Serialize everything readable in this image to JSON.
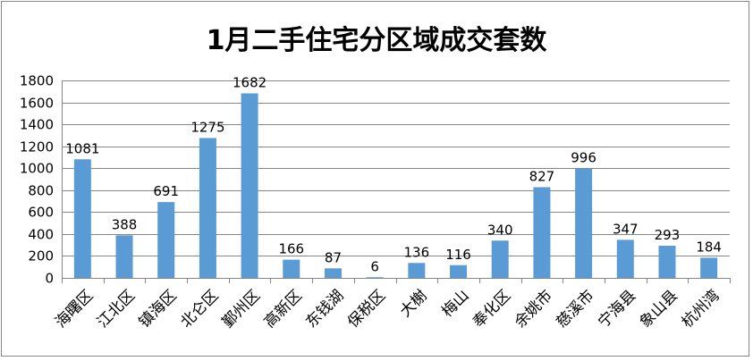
{
  "chart_data": {
    "type": "bar",
    "title": "1月二手住宅分区域成交套数",
    "xlabel": "",
    "ylabel": "",
    "categories": [
      "海曙区",
      "江北区",
      "镇海区",
      "北仑区",
      "鄞州区",
      "高新区",
      "东钱湖",
      "保税区",
      "大榭",
      "梅山",
      "奉化区",
      "余姚市",
      "慈溪市",
      "宁海县",
      "象山县",
      "杭州湾"
    ],
    "values": [
      1081,
      388,
      691,
      1275,
      1682,
      166,
      87,
      6,
      136,
      116,
      340,
      827,
      996,
      347,
      293,
      184
    ],
    "ylim": [
      0,
      1800
    ],
    "yticks": [
      0,
      200,
      400,
      600,
      800,
      1000,
      1200,
      1400,
      1600,
      1800
    ],
    "grid": true,
    "legend": "none",
    "bar_color": "#5B9BD5"
  }
}
